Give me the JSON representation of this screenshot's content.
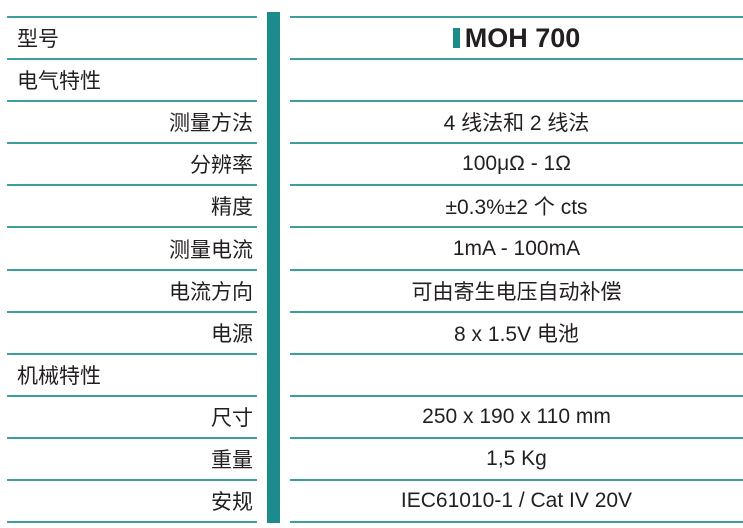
{
  "accent_color": "#1b8b8b",
  "rows": [
    {
      "label": "型号",
      "value": "MOH 700",
      "kind": "model"
    },
    {
      "label": "电气特性",
      "value": "",
      "kind": "head"
    },
    {
      "label": "测量方法",
      "value": "4 线法和 2 线法",
      "kind": "sub"
    },
    {
      "label": "分辨率",
      "value": "100μΩ - 1Ω",
      "kind": "sub"
    },
    {
      "label": "精度",
      "value": "±0.3%±2 个 cts",
      "kind": "sub"
    },
    {
      "label": "测量电流",
      "value": "1mA - 100mA",
      "kind": "sub"
    },
    {
      "label": "电流方向",
      "value": "可由寄生电压自动补偿",
      "kind": "sub"
    },
    {
      "label": "电源",
      "value": "8 x  1.5V 电池",
      "kind": "sub"
    },
    {
      "label": "机械特性",
      "value": "",
      "kind": "head"
    },
    {
      "label": "尺寸",
      "value": "250 x 190 x 110 mm",
      "kind": "sub"
    },
    {
      "label": "重量",
      "value": "1,5 Kg",
      "kind": "sub"
    },
    {
      "label": "安规",
      "value": "IEC61010-1 / Cat IV 20V",
      "kind": "sub"
    }
  ]
}
